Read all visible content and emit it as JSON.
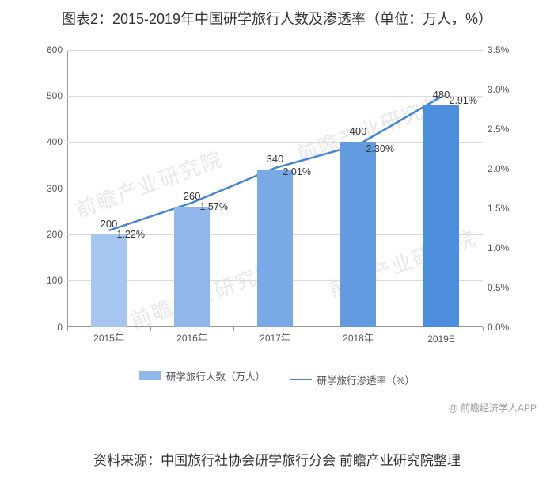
{
  "title": "图表2：2015-2019年中国研学旅行人数及渗透率（单位：万人，%）",
  "title_fontsize": 18,
  "chart": {
    "type": "bar-line-combo",
    "categories": [
      "2015年",
      "2016年",
      "2017年",
      "2018年",
      "2019E"
    ],
    "bar_values": [
      200,
      260,
      340,
      400,
      480
    ],
    "bar_colors": [
      "#a6c5ef",
      "#8fb7ea",
      "#79a9e6",
      "#639be1",
      "#4d8ddd"
    ],
    "bar_width_ratio": 0.42,
    "bar_label_fontsize": 13,
    "line_values": [
      1.22,
      1.57,
      2.01,
      2.3,
      2.91
    ],
    "line_labels": [
      "1.22%",
      "1.57%",
      "2.01%",
      "2.30%",
      "2.91%"
    ],
    "line_color": "#4285d6",
    "line_width": 2.5,
    "y_left": {
      "min": 0,
      "max": 600,
      "step": 100
    },
    "y_right": {
      "min": 0.0,
      "max": 3.5,
      "step": 0.5,
      "labels": [
        "0.0%",
        "0.5%",
        "1.0%",
        "1.5%",
        "2.0%",
        "2.5%",
        "3.0%",
        "3.5%"
      ]
    },
    "axis_color": "#999999",
    "grid_color": "#d9d9d9",
    "tick_fontsize": 12,
    "background_color": "#ffffff"
  },
  "legend": {
    "bar": {
      "label": "研学旅行人数（万人）",
      "color": "#8fb7ea"
    },
    "line": {
      "label": "研学旅行渗透率（%）",
      "color": "#4285d6"
    }
  },
  "watermark_app": "@ 前瞻经济学人APP",
  "watermark_bg": "前瞻产业研究院",
  "source": "资料来源：中国旅行社协会研学旅行分会 前瞻产业研究院整理",
  "source_fontsize": 17
}
